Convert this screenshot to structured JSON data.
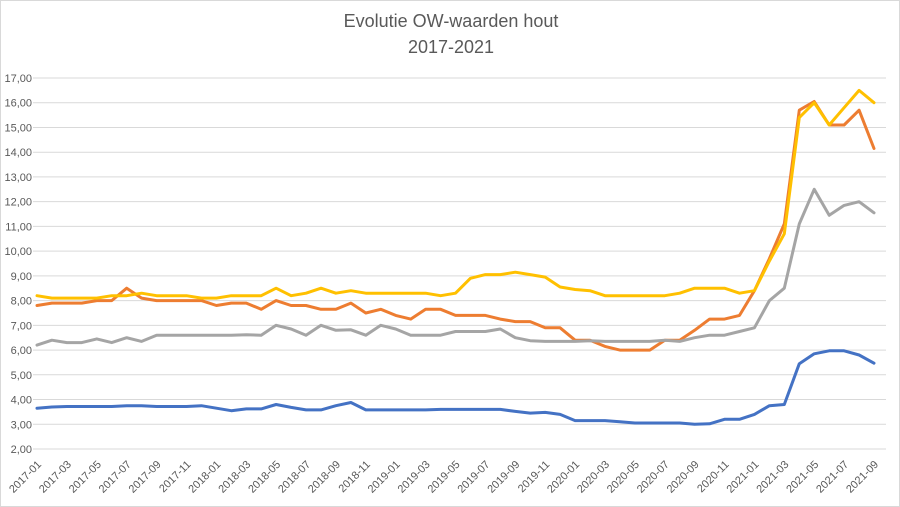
{
  "chart_data": {
    "type": "line",
    "title": "Evolutie OW-waarden hout",
    "subtitle": "2017-2021",
    "xlabel": "",
    "ylabel": "",
    "ylim": [
      2,
      17
    ],
    "ytick_step": 1,
    "grid": true,
    "legend": "none",
    "x": [
      "2017-01",
      "2017-02",
      "2017-03",
      "2017-04",
      "2017-05",
      "2017-06",
      "2017-07",
      "2017-08",
      "2017-09",
      "2017-10",
      "2017-11",
      "2017-12",
      "2018-01",
      "2018-02",
      "2018-03",
      "2018-04",
      "2018-05",
      "2018-06",
      "2018-07",
      "2018-08",
      "2018-09",
      "2018-10",
      "2018-11",
      "2018-12",
      "2019-01",
      "2019-02",
      "2019-03",
      "2019-04",
      "2019-05",
      "2019-06",
      "2019-07",
      "2019-08",
      "2019-09",
      "2019-10",
      "2019-11",
      "2019-12",
      "2020-01",
      "2020-02",
      "2020-03",
      "2020-04",
      "2020-05",
      "2020-06",
      "2020-07",
      "2020-08",
      "2020-09",
      "2020-10",
      "2020-11",
      "2020-12",
      "2021-01",
      "2021-02",
      "2021-03",
      "2021-04",
      "2021-05",
      "2021-06",
      "2021-07",
      "2021-08",
      "2021-09"
    ],
    "series": [
      {
        "color": "#4472c4",
        "values": [
          3.65,
          3.7,
          3.72,
          3.72,
          3.72,
          3.72,
          3.75,
          3.75,
          3.72,
          3.72,
          3.72,
          3.75,
          3.65,
          3.55,
          3.62,
          3.62,
          3.8,
          3.68,
          3.58,
          3.58,
          3.75,
          3.88,
          3.58,
          3.58,
          3.58,
          3.58,
          3.58,
          3.6,
          3.6,
          3.6,
          3.6,
          3.6,
          3.52,
          3.45,
          3.48,
          3.4,
          3.15,
          3.15,
          3.15,
          3.1,
          3.05,
          3.05,
          3.05,
          3.05,
          3.0,
          3.02,
          3.2,
          3.2,
          3.4,
          3.75,
          3.8,
          5.45,
          5.85,
          5.97,
          5.97,
          5.8,
          5.47
        ]
      },
      {
        "color": "#ed7d31",
        "values": [
          7.8,
          7.9,
          7.9,
          7.9,
          8.0,
          8.0,
          8.5,
          8.1,
          8.0,
          8.0,
          8.0,
          8.0,
          7.8,
          7.9,
          7.9,
          7.65,
          8.0,
          7.8,
          7.8,
          7.65,
          7.65,
          7.9,
          7.5,
          7.65,
          7.4,
          7.25,
          7.65,
          7.65,
          7.4,
          7.4,
          7.4,
          7.25,
          7.15,
          7.15,
          6.9,
          6.9,
          6.4,
          6.4,
          6.15,
          6.0,
          6.0,
          6.0,
          6.4,
          6.4,
          6.8,
          7.25,
          7.25,
          7.4,
          8.4,
          9.7,
          11.1,
          15.7,
          16.05,
          15.1,
          15.1,
          15.7,
          14.15
        ]
      },
      {
        "color": "#a5a5a5",
        "values": [
          6.2,
          6.4,
          6.3,
          6.3,
          6.45,
          6.3,
          6.5,
          6.35,
          6.6,
          6.6,
          6.6,
          6.6,
          6.6,
          6.6,
          6.62,
          6.6,
          7.0,
          6.85,
          6.6,
          7.0,
          6.8,
          6.82,
          6.6,
          7.0,
          6.85,
          6.6,
          6.6,
          6.6,
          6.75,
          6.75,
          6.75,
          6.85,
          6.5,
          6.38,
          6.35,
          6.35,
          6.35,
          6.38,
          6.35,
          6.35,
          6.35,
          6.35,
          6.4,
          6.35,
          6.5,
          6.6,
          6.6,
          6.75,
          6.9,
          8.0,
          8.5,
          11.1,
          12.5,
          11.45,
          11.85,
          12.0,
          11.55
        ]
      },
      {
        "color": "#ffc000",
        "values": [
          8.2,
          8.1,
          8.1,
          8.1,
          8.1,
          8.2,
          8.2,
          8.3,
          8.2,
          8.2,
          8.2,
          8.1,
          8.1,
          8.2,
          8.2,
          8.2,
          8.5,
          8.2,
          8.3,
          8.5,
          8.3,
          8.4,
          8.3,
          8.3,
          8.3,
          8.3,
          8.3,
          8.2,
          8.3,
          8.9,
          9.05,
          9.05,
          9.15,
          9.05,
          8.95,
          8.55,
          8.45,
          8.4,
          8.2,
          8.2,
          8.2,
          8.2,
          8.2,
          8.3,
          8.5,
          8.5,
          8.5,
          8.3,
          8.4,
          9.6,
          10.7,
          15.4,
          16.0,
          15.1,
          15.8,
          16.5,
          16.0
        ]
      }
    ]
  }
}
